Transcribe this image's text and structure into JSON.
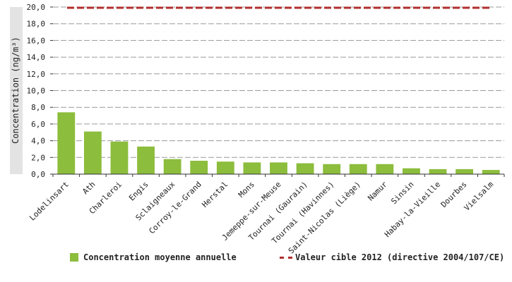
{
  "chart_data": {
    "type": "bar",
    "title": "",
    "xlabel": "",
    "ylabel": "Concentration (ng/m³)",
    "ylim": [
      0,
      20
    ],
    "yticks": [
      "0,0",
      "2,0",
      "4,0",
      "6,0",
      "8,0",
      "10,0",
      "12,0",
      "14,0",
      "16,0",
      "18,0",
      "20,0"
    ],
    "grid": true,
    "legend_position": "bottom",
    "categories": [
      "Lodelinsart",
      "Ath",
      "Charleroi",
      "Engis",
      "Sclaigneaux",
      "Corroy-le-Grand",
      "Herstal",
      "Mons",
      "Jemeppe-sur-Meuse",
      "Tournai (Gaurain)",
      "Tournai (Havinnes)",
      "Saint-Nicolas (Liège)",
      "Namur",
      "Sinsin",
      "Habay-la-Vieille",
      "Dourbes",
      "Vielsalm"
    ],
    "series": [
      {
        "name": "Concentration moyenne annuelle",
        "type": "bar",
        "color": "#8cbd3c",
        "values": [
          7.4,
          5.1,
          3.9,
          3.3,
          1.8,
          1.6,
          1.5,
          1.4,
          1.4,
          1.3,
          1.2,
          1.2,
          1.2,
          0.7,
          0.6,
          0.6,
          0.5
        ]
      },
      {
        "name": "Valeur cible 2012 (directive 2004/107/CE)",
        "type": "line",
        "style": "dashed",
        "color": "#b22d2d",
        "value": 20
      }
    ]
  }
}
